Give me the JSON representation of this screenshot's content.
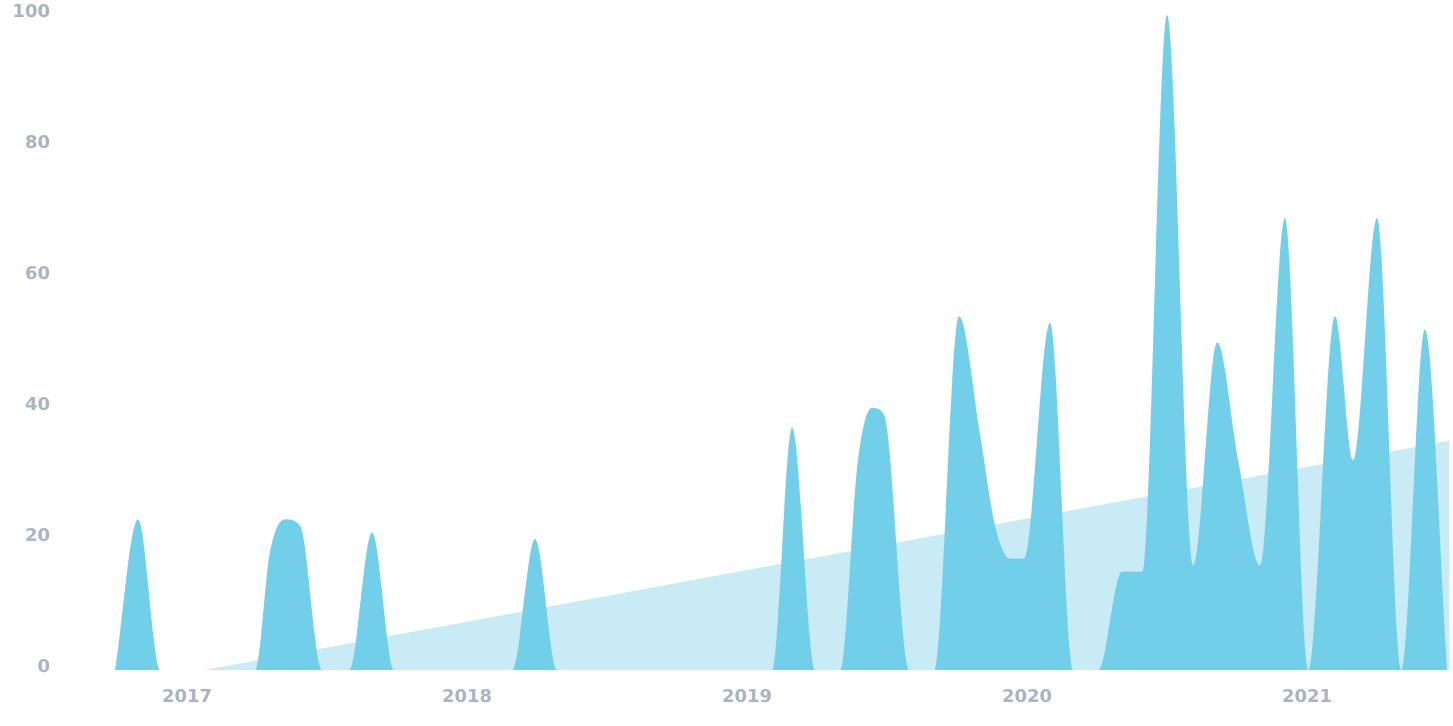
{
  "chart_data": {
    "type": "area",
    "series": [
      {
        "color": "#c8ebf6",
        "x": [
          2017.064,
          2021.507
        ],
        "values": [
          0,
          35
        ]
      },
      {
        "color": "#72cfea",
        "x": [
          2016.743,
          2016.825,
          2016.904,
          2017.243,
          2017.296,
          2017.35,
          2017.404,
          2017.482,
          2017.579,
          2017.661,
          2017.739,
          2018.161,
          2018.243,
          2018.321,
          2019.089,
          2019.161,
          2019.243,
          2019.332,
          2019.396,
          2019.446,
          2019.489,
          2019.579,
          2019.668,
          2019.757,
          2019.832,
          2019.886,
          2019.939,
          2019.989,
          2020.082,
          2020.164,
          2020.254,
          2020.339,
          2020.411,
          2020.5,
          2020.593,
          2020.679,
          2020.754,
          2020.832,
          2020.921,
          2021.004,
          2021.1,
          2021.164,
          2021.25,
          2021.336,
          2021.421,
          2021.5
        ],
        "values": [
          0,
          23,
          0,
          0,
          18,
          23,
          22,
          0,
          0,
          21,
          0,
          0,
          20,
          0,
          0,
          37,
          0,
          0,
          32,
          40,
          39,
          0,
          0,
          54,
          36,
          22,
          17,
          17,
          53,
          0,
          0,
          15,
          15,
          100,
          16,
          50,
          32,
          16,
          69,
          0,
          54,
          32,
          69,
          0,
          52,
          0
        ]
      }
    ],
    "xlim": [
      2016.582,
      2021.507
    ],
    "xticks": [
      2017,
      2018,
      2019,
      2020,
      2021
    ],
    "ylim": [
      0,
      100
    ],
    "yticks": [
      0,
      20,
      40,
      60,
      80,
      100
    ],
    "grid": false
  }
}
